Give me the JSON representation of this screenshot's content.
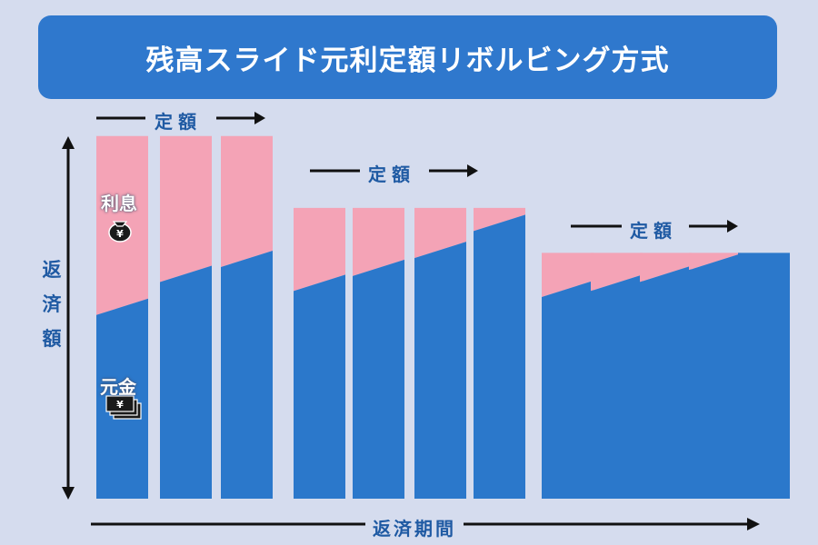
{
  "title": "残高スライド元利定額リボルビング方式",
  "group_labels": [
    "定額",
    "定額",
    "定額"
  ],
  "y_axis_label": "返済額",
  "x_axis_label": "返済期間",
  "segment_labels": {
    "interest": "利息",
    "principal": "元金"
  },
  "icons": {
    "interest": "money-bag-yen-icon",
    "principal": "banknotes-icon"
  },
  "colors": {
    "background": "#d5dcee",
    "title_bg": "#2f78cd",
    "principal": "#2b78cb",
    "interest": "#f4a3b6",
    "label_text": "#1f5aa3",
    "arrow": "#111111"
  },
  "chart_data": {
    "type": "bar",
    "stacked": true,
    "series": [
      {
        "name": "元金",
        "values": [
          0.64,
          0.75,
          0.8,
          0.72,
          0.77,
          0.83,
          0.92,
          0.7,
          0.72,
          0.75,
          0.79,
          0.82
        ]
      },
      {
        "name": "利息",
        "values": [
          0.57,
          0.46,
          0.41,
          0.25,
          0.2,
          0.14,
          0.05,
          0.12,
          0.1,
          0.07,
          0.03,
          0.0
        ]
      }
    ],
    "groups": [
      {
        "label": "定額",
        "bars": [
          0,
          1,
          2
        ]
      },
      {
        "label": "定額",
        "bars": [
          3,
          4,
          5,
          6
        ]
      },
      {
        "label": "定額",
        "bars": [
          7,
          8,
          9,
          10,
          11
        ]
      }
    ]
  }
}
